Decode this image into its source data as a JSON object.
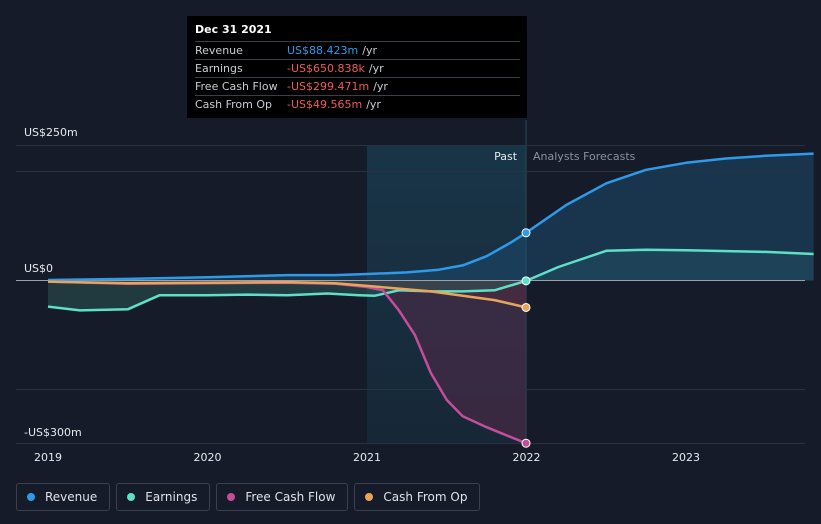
{
  "tooltip": {
    "date": "Dec 31 2021",
    "unit": "/yr",
    "rows": [
      {
        "label": "Revenue",
        "value": "US$88.423m",
        "color": "#2f9ae8"
      },
      {
        "label": "Earnings",
        "value": "-US$650.838k",
        "color": "#f05a5a"
      },
      {
        "label": "Free Cash Flow",
        "value": "-US$299.471m",
        "color": "#f05a5a"
      },
      {
        "label": "Cash From Op",
        "value": "-US$49.565m",
        "color": "#f05a5a"
      }
    ]
  },
  "chart_data": {
    "type": "line",
    "y_label_top": "US$250m",
    "y_label_zero": "US$0",
    "y_label_bottom": "-US$300m",
    "ylim": [
      -300,
      250
    ],
    "xlim": [
      2018.93,
      2023.8
    ],
    "x_ticks": [
      {
        "label": "2019",
        "value": 2019
      },
      {
        "label": "2020",
        "value": 2020
      },
      {
        "label": "2021",
        "value": 2021
      },
      {
        "label": "2022",
        "value": 2022
      },
      {
        "label": "2023",
        "value": 2023
      }
    ],
    "past_label": "Past",
    "forecast_label": "Analysts Forecasts",
    "past_region_start": 2021.0,
    "divider_x": 2021.997,
    "series": [
      {
        "name": "Revenue",
        "color": "#2f9ae8",
        "fill": "#1d4a6e",
        "points": [
          [
            2019.0,
            1
          ],
          [
            2019.5,
            3
          ],
          [
            2020.0,
            6
          ],
          [
            2020.5,
            10
          ],
          [
            2020.8,
            10
          ],
          [
            2021.0,
            12
          ],
          [
            2021.25,
            15
          ],
          [
            2021.45,
            20
          ],
          [
            2021.6,
            28
          ],
          [
            2021.75,
            45
          ],
          [
            2021.9,
            70
          ],
          [
            2021.997,
            88.4
          ],
          [
            2022.25,
            140
          ],
          [
            2022.5,
            180
          ],
          [
            2022.75,
            205
          ],
          [
            2023.0,
            218
          ],
          [
            2023.25,
            226
          ],
          [
            2023.5,
            231
          ],
          [
            2023.8,
            235
          ]
        ],
        "forecast_from": 11
      },
      {
        "name": "Earnings",
        "color": "#5ee0c8",
        "fill": "#2b5a56",
        "points": [
          [
            2019.0,
            -48
          ],
          [
            2019.2,
            -55
          ],
          [
            2019.5,
            -53
          ],
          [
            2019.7,
            -27
          ],
          [
            2020.0,
            -27
          ],
          [
            2020.25,
            -26
          ],
          [
            2020.5,
            -27
          ],
          [
            2020.75,
            -24
          ],
          [
            2020.95,
            -27
          ],
          [
            2021.05,
            -28
          ],
          [
            2021.2,
            -18
          ],
          [
            2021.4,
            -20
          ],
          [
            2021.6,
            -20
          ],
          [
            2021.8,
            -18
          ],
          [
            2021.997,
            -0.65
          ],
          [
            2022.2,
            25
          ],
          [
            2022.5,
            55
          ],
          [
            2022.75,
            57
          ],
          [
            2023.0,
            56
          ],
          [
            2023.5,
            53
          ],
          [
            2023.8,
            49
          ]
        ],
        "forecast_from": 14
      },
      {
        "name": "Free Cash Flow",
        "color": "#c44d9c",
        "fill": "#5a2a4a",
        "points": [
          [
            2019.0,
            -2
          ],
          [
            2019.5,
            -6
          ],
          [
            2020.0,
            -5
          ],
          [
            2020.5,
            -4
          ],
          [
            2020.8,
            -6
          ],
          [
            2021.0,
            -12
          ],
          [
            2021.1,
            -18
          ],
          [
            2021.2,
            -55
          ],
          [
            2021.3,
            -100
          ],
          [
            2021.4,
            -170
          ],
          [
            2021.5,
            -220
          ],
          [
            2021.6,
            -250
          ],
          [
            2021.75,
            -270
          ],
          [
            2021.9,
            -288
          ],
          [
            2021.997,
            -299.5
          ]
        ],
        "forecast_from": 99
      },
      {
        "name": "Cash From Op",
        "color": "#e8a55a",
        "fill": "#4a2a30",
        "points": [
          [
            2019.0,
            -2
          ],
          [
            2019.5,
            -5
          ],
          [
            2020.0,
            -4
          ],
          [
            2020.5,
            -3
          ],
          [
            2020.8,
            -5
          ],
          [
            2021.0,
            -10
          ],
          [
            2021.2,
            -15
          ],
          [
            2021.4,
            -20
          ],
          [
            2021.6,
            -28
          ],
          [
            2021.8,
            -36
          ],
          [
            2021.997,
            -49.6
          ]
        ],
        "forecast_from": 99
      }
    ]
  },
  "legend": [
    {
      "label": "Revenue",
      "color": "#2f9ae8"
    },
    {
      "label": "Earnings",
      "color": "#5ee0c8"
    },
    {
      "label": "Free Cash Flow",
      "color": "#c44d9c"
    },
    {
      "label": "Cash From Op",
      "color": "#e8a55a"
    }
  ]
}
